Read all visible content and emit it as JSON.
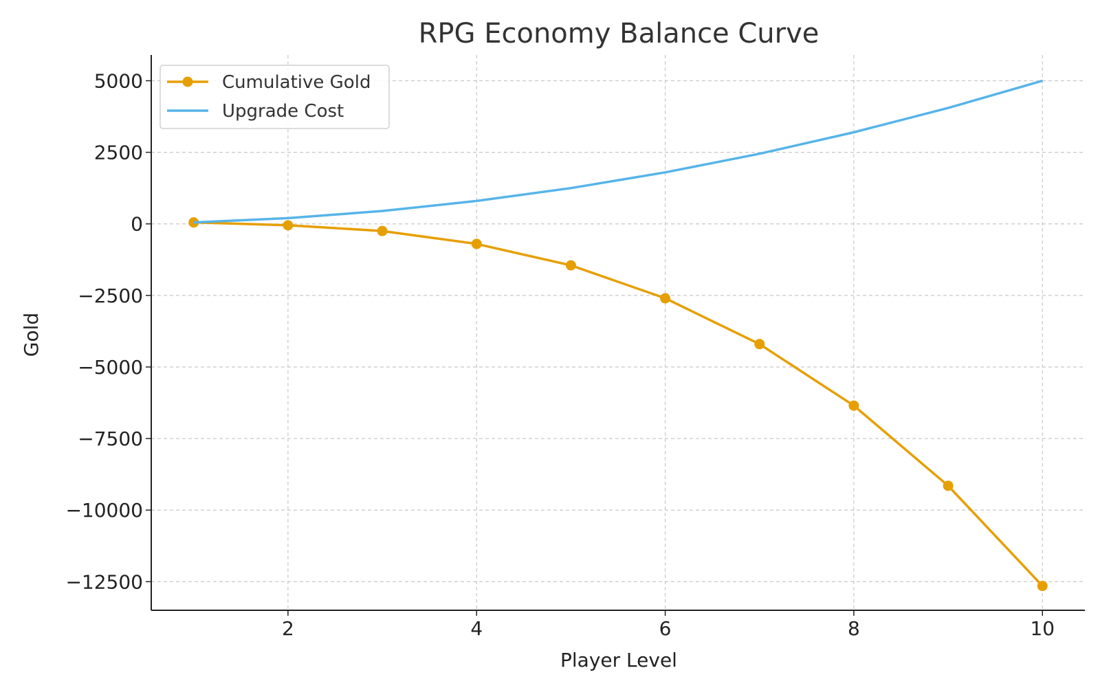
{
  "chart_data": {
    "type": "line",
    "title": "RPG Economy Balance Curve",
    "xlabel": "Player Level",
    "ylabel": "Gold",
    "xlim": [
      0.55,
      10.45
    ],
    "ylim": [
      -13500,
      5900
    ],
    "x_ticks": [
      2,
      4,
      6,
      8,
      10
    ],
    "y_ticks": [
      5000,
      2500,
      0,
      -2500,
      -5000,
      -7500,
      -10000,
      -12500
    ],
    "x_tick_labels": [
      "2",
      "4",
      "6",
      "8",
      "10"
    ],
    "y_tick_labels": [
      "5000",
      "2500",
      "0",
      "−2500",
      "−5000",
      "−7500",
      "−10000",
      "−12500"
    ],
    "grid": true,
    "legend_position": "top-left",
    "x": [
      1,
      2,
      3,
      4,
      5,
      6,
      7,
      8,
      9,
      10
    ],
    "series": [
      {
        "name": "Cumulative Gold",
        "color": "#E69F00",
        "marker": "circle",
        "values": [
          50,
          -50,
          -250,
          -700,
          -1450,
          -2600,
          -4200,
          -6350,
          -9150,
          -12650
        ]
      },
      {
        "name": "Upgrade Cost",
        "color": "#56B4E9",
        "marker": "none",
        "values": [
          50,
          200,
          450,
          800,
          1250,
          1800,
          2450,
          3200,
          4050,
          5000
        ]
      }
    ]
  }
}
